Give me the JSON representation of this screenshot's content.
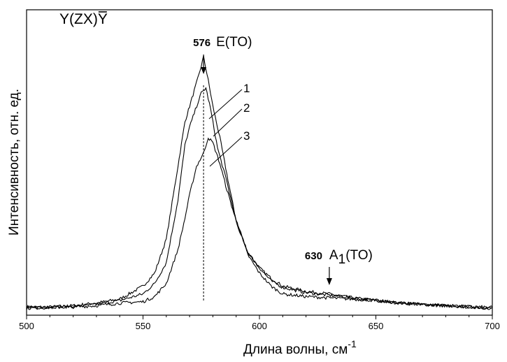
{
  "chart_data": {
    "type": "line",
    "title": "Y(ZX)Y",
    "title_overline_char": "Y",
    "xlabel": "Длина волны, см",
    "xlabel_superscript": "-1",
    "ylabel": "Интенсивность, отн. ед.",
    "xlim": [
      500,
      700
    ],
    "ylim": [
      0,
      1
    ],
    "x_ticks": [
      "500",
      "550",
      "600",
      "650",
      "700"
    ],
    "grid": false,
    "legend": "none",
    "annotations": [
      {
        "x": 576,
        "number": "576",
        "text": "E(TO)"
      },
      {
        "x": 630,
        "number": "630",
        "text": "A",
        "subscript": "1",
        "suffix": "(TO)"
      }
    ],
    "series": [
      {
        "label": "1",
        "points": [
          [
            500,
            0.01
          ],
          [
            510,
            0.01
          ],
          [
            520,
            0.015
          ],
          [
            530,
            0.025
          ],
          [
            540,
            0.04
          ],
          [
            550,
            0.09
          ],
          [
            555,
            0.14
          ],
          [
            560,
            0.27
          ],
          [
            565,
            0.55
          ],
          [
            568,
            0.72
          ],
          [
            570,
            0.78
          ],
          [
            572,
            0.84
          ],
          [
            574,
            0.9
          ],
          [
            576,
            0.97
          ],
          [
            578,
            0.88
          ],
          [
            580,
            0.78
          ],
          [
            583,
            0.66
          ],
          [
            586,
            0.52
          ],
          [
            590,
            0.34
          ],
          [
            595,
            0.22
          ],
          [
            600,
            0.16
          ],
          [
            605,
            0.12
          ],
          [
            610,
            0.09
          ],
          [
            620,
            0.07
          ],
          [
            630,
            0.06
          ],
          [
            640,
            0.045
          ],
          [
            650,
            0.035
          ],
          [
            660,
            0.025
          ],
          [
            680,
            0.015
          ],
          [
            700,
            0.005
          ]
        ]
      },
      {
        "label": "2",
        "points": [
          [
            500,
            0.008
          ],
          [
            510,
            0.01
          ],
          [
            520,
            0.012
          ],
          [
            530,
            0.02
          ],
          [
            540,
            0.035
          ],
          [
            550,
            0.06
          ],
          [
            555,
            0.1
          ],
          [
            560,
            0.18
          ],
          [
            565,
            0.42
          ],
          [
            568,
            0.63
          ],
          [
            570,
            0.7
          ],
          [
            573,
            0.78
          ],
          [
            575,
            0.83
          ],
          [
            577,
            0.85
          ],
          [
            579,
            0.77
          ],
          [
            582,
            0.62
          ],
          [
            586,
            0.49
          ],
          [
            590,
            0.34
          ],
          [
            595,
            0.22
          ],
          [
            600,
            0.16
          ],
          [
            605,
            0.11
          ],
          [
            610,
            0.085
          ],
          [
            620,
            0.065
          ],
          [
            630,
            0.055
          ],
          [
            640,
            0.045
          ],
          [
            650,
            0.035
          ],
          [
            660,
            0.025
          ],
          [
            680,
            0.015
          ],
          [
            700,
            0.005
          ]
        ]
      },
      {
        "label": "3",
        "points": [
          [
            500,
            0.005
          ],
          [
            510,
            0.008
          ],
          [
            520,
            0.01
          ],
          [
            530,
            0.015
          ],
          [
            540,
            0.025
          ],
          [
            550,
            0.03
          ],
          [
            555,
            0.05
          ],
          [
            560,
            0.1
          ],
          [
            565,
            0.23
          ],
          [
            568,
            0.35
          ],
          [
            570,
            0.44
          ],
          [
            573,
            0.55
          ],
          [
            576,
            0.6
          ],
          [
            578,
            0.66
          ],
          [
            580,
            0.64
          ],
          [
            583,
            0.56
          ],
          [
            586,
            0.46
          ],
          [
            590,
            0.34
          ],
          [
            595,
            0.21
          ],
          [
            600,
            0.14
          ],
          [
            605,
            0.09
          ],
          [
            610,
            0.06
          ],
          [
            620,
            0.05
          ],
          [
            630,
            0.045
          ],
          [
            640,
            0.04
          ],
          [
            650,
            0.035
          ],
          [
            660,
            0.025
          ],
          [
            680,
            0.015
          ],
          [
            700,
            0.008
          ]
        ]
      }
    ]
  }
}
